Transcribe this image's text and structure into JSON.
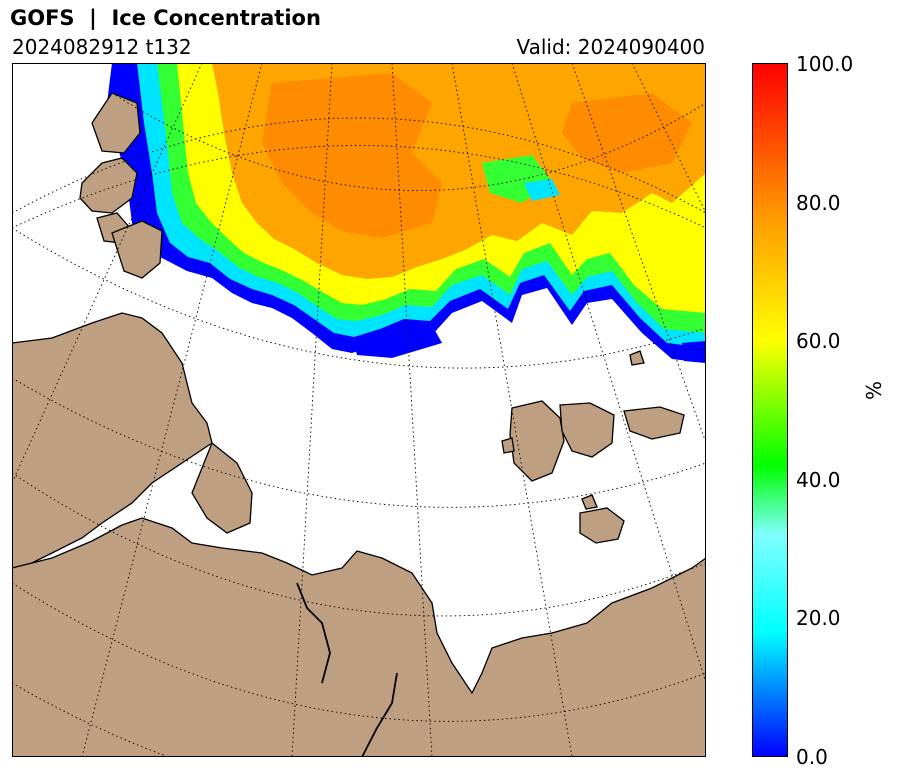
{
  "header": {
    "title": "GOFS  |  Ice Concentration",
    "run_label": "2024082912 t132",
    "valid_label": "Valid: 2024090400"
  },
  "colorbar": {
    "ticks": [
      "100.0",
      "80.0",
      "60.0",
      "40.0",
      "20.0",
      "0.0"
    ],
    "unit": "%",
    "range": [
      0,
      100
    ],
    "stops": [
      "#0000ff",
      "#00ffff",
      "#00ff00",
      "#ffff00",
      "#ff8000",
      "#ff0000"
    ]
  },
  "map": {
    "land_color": "#bf9f81",
    "ocean_color": "#ffffff",
    "coastline_color": "#000000",
    "graticule": "dotted"
  }
}
